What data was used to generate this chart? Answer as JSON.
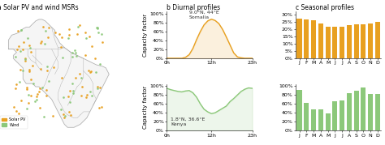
{
  "title_a": "a Solar PV and wind MSRs",
  "title_b": "b Diurnal profiles",
  "title_c": "c Seasonal profiles",
  "solar_label": "Solar PV, 9.0°N, 44°E\nSomalia",
  "wind_label": "1.8°N, 36.6°E\nKenya",
  "solar_color": "#E8A020",
  "wind_color": "#8CC87A",
  "solar_bar_color": "#E8A020",
  "wind_bar_color": "#8CC87A",
  "solar_diurnal": [
    0,
    0,
    0,
    0,
    0,
    0.02,
    0.08,
    0.22,
    0.42,
    0.6,
    0.75,
    0.84,
    0.88,
    0.85,
    0.78,
    0.65,
    0.48,
    0.3,
    0.12,
    0.03,
    0.01,
    0,
    0,
    0
  ],
  "wind_diurnal": [
    0.95,
    0.92,
    0.9,
    0.88,
    0.87,
    0.89,
    0.9,
    0.85,
    0.75,
    0.6,
    0.48,
    0.42,
    0.38,
    0.4,
    0.45,
    0.5,
    0.55,
    0.65,
    0.72,
    0.8,
    0.88,
    0.93,
    0.96,
    0.95
  ],
  "solar_seasonal": [
    0.27,
    0.265,
    0.26,
    0.24,
    0.215,
    0.215,
    0.215,
    0.23,
    0.235,
    0.235,
    0.24,
    0.25
  ],
  "wind_seasonal": [
    0.92,
    0.62,
    0.47,
    0.47,
    0.38,
    0.65,
    0.68,
    0.85,
    0.9,
    0.96,
    0.82,
    0.82
  ],
  "months": [
    "J",
    "F",
    "M",
    "A",
    "M",
    "J",
    "J",
    "A",
    "S",
    "O",
    "N",
    "D"
  ],
  "map_outline_color": "#AAAAAA",
  "map_bg": "#FFFFFF",
  "legend_solar": "Solar PV",
  "legend_wind": "Wind",
  "axis_label_fontsize": 5,
  "tick_fontsize": 4.5,
  "title_fontsize": 5.5,
  "annotation_fontsize": 4.5
}
